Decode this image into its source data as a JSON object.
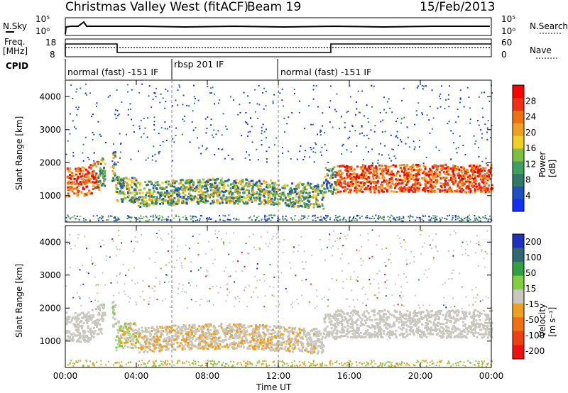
{
  "header": {
    "station": "Christmas Valley West (fitACF)",
    "beam": "Beam 19",
    "date": "15/Feb/2013"
  },
  "strip_left": {
    "nsky": "N.Sky",
    "freq_line1": "Freq.",
    "freq_line2": "[MHz]",
    "cpid": "CPID"
  },
  "strip_right": {
    "nsearch": "N.Search",
    "nave": "Nave"
  },
  "strip_ticks": {
    "nsky_hi": "10^5",
    "nsky_lo": "10^0",
    "freq_hi": "18",
    "freq_lo": "8",
    "nsearch_hi": "10^5",
    "nsearch_lo": "10^0",
    "nave_hi": "60",
    "nave_lo": "0"
  },
  "cpid_segments": [
    {
      "label": "normal (fast) -151 IF",
      "start": "00:00",
      "end": "06:00"
    },
    {
      "label": "rbsp 201 IF",
      "start": "06:00",
      "end": "12:00"
    },
    {
      "label": "normal (fast) -151 IF",
      "start": "12:00",
      "end": "24:00"
    }
  ],
  "chart_data": [
    {
      "type": "heatmap",
      "name": "power",
      "ylabel": "Slant Range [km]",
      "yticks": [
        "1000",
        "2000",
        "3000",
        "4000"
      ],
      "ylim": [
        200,
        4500
      ],
      "colorbar_label": "Power [dB]",
      "colorbar_ticks": [
        "4",
        "8",
        "12",
        "16",
        "20",
        "24",
        "28"
      ],
      "colorbar_colors": [
        "#1030ff",
        "#2050c0",
        "#2f7a6a",
        "#3fa060",
        "#80c040",
        "#f0d020",
        "#f0a020",
        "#f07010",
        "#f03010",
        "#ff0000"
      ]
    },
    {
      "type": "heatmap",
      "name": "velocity",
      "ylabel": "Slant Range [km]",
      "yticks": [
        "1000",
        "2000",
        "3000",
        "4000"
      ],
      "ylim": [
        200,
        4500
      ],
      "colorbar_label": "Velocity [m s⁻¹]",
      "colorbar_ticks": [
        "200",
        "100",
        "50",
        "15",
        "-15",
        "-50",
        "-100",
        "-200"
      ],
      "colorbar_colors": [
        "#2030c0",
        "#2f6a70",
        "#30a040",
        "#80d040",
        "#c8c8c0",
        "#f0a020",
        "#f07010",
        "#f04010",
        "#f01010"
      ]
    }
  ],
  "x_axis": {
    "label": "Time UT",
    "ticks": [
      "00:00",
      "04:00",
      "08:00",
      "12:00",
      "16:00",
      "20:00",
      "00:00"
    ],
    "xlim": [
      0,
      24
    ]
  }
}
